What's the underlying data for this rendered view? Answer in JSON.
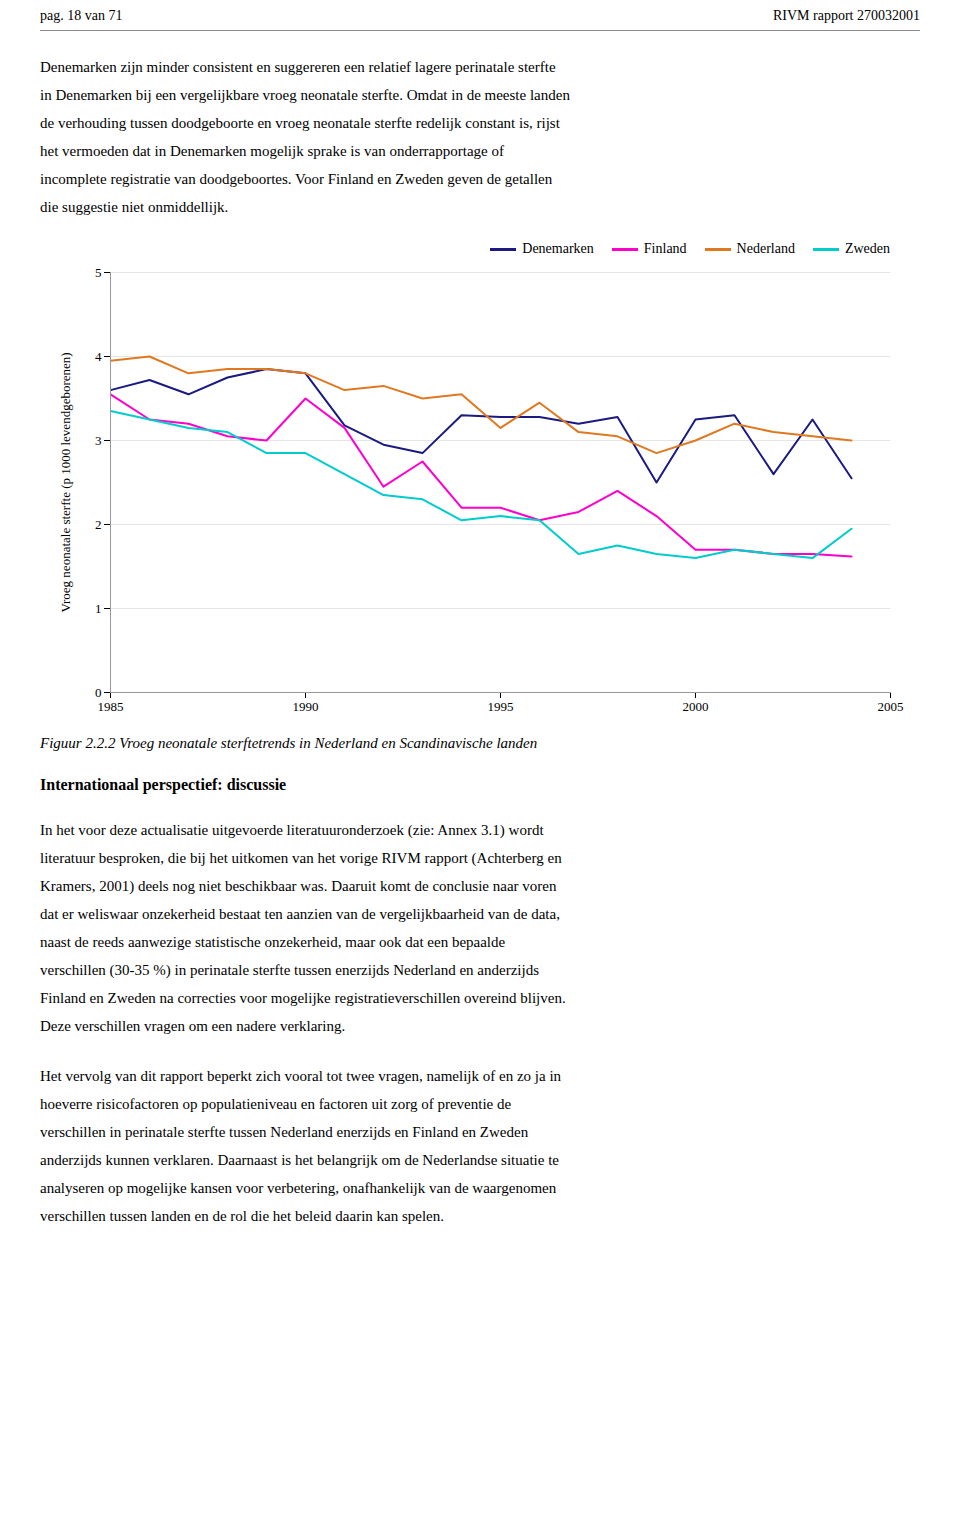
{
  "header_left": "pag. 18 van 71",
  "header_right": "RIVM rapport 270032001",
  "paragraphs_before": [
    [
      "Denemarken zijn minder consistent en suggereren een relatief lagere perinatale sterfte",
      "in Denemarken bij een vergelijkbare vroeg neonatale sterfte. Omdat in de meeste landen",
      "de verhouding tussen doodgeboorte en vroeg neonatale sterfte redelijk constant is, rijst",
      "het vermoeden dat in Denemarken mogelijk sprake is van onderrapportage of",
      "incomplete registratie van doodgeboortes. Voor Finland en Zweden geven de getallen",
      "die suggestie niet onmiddellijk."
    ]
  ],
  "chart_data": {
    "type": "line",
    "caption": "Figuur 2.2.2 Vroeg neonatale sterftetrends in Nederland en Scandinavische landen",
    "ylabel": "Vroeg neonatale sterfte (p 1000 levendgeborenen)",
    "x": [
      1985,
      1986,
      1987,
      1988,
      1989,
      1990,
      1991,
      1992,
      1993,
      1994,
      1995,
      1996,
      1997,
      1998,
      1999,
      2000,
      2001,
      2002,
      2003,
      2004
    ],
    "series": [
      {
        "name": "Denemarken",
        "color": "#1a1a80",
        "values": [
          3.6,
          3.72,
          3.55,
          3.75,
          3.85,
          3.8,
          3.18,
          2.95,
          2.85,
          3.3,
          3.28,
          3.28,
          3.2,
          3.28,
          2.5,
          3.25,
          3.3,
          2.6,
          3.25,
          2.55
        ]
      },
      {
        "name": "Finland",
        "color": "#ff00cc",
        "values": [
          3.55,
          3.25,
          3.2,
          3.05,
          3.0,
          3.5,
          3.15,
          2.45,
          2.75,
          2.2,
          2.2,
          2.05,
          2.15,
          2.4,
          2.1,
          1.7,
          1.7,
          1.65,
          1.65,
          1.62
        ]
      },
      {
        "name": "Nederland",
        "color": "#e07820",
        "values": [
          3.95,
          4.0,
          3.8,
          3.85,
          3.85,
          3.8,
          3.6,
          3.65,
          3.5,
          3.55,
          3.15,
          3.45,
          3.1,
          3.05,
          2.85,
          3.0,
          3.2,
          3.1,
          3.05,
          3.0
        ]
      },
      {
        "name": "Zweden",
        "color": "#00cccc",
        "values": [
          3.35,
          3.25,
          3.15,
          3.1,
          2.85,
          2.85,
          2.6,
          2.35,
          2.3,
          2.05,
          2.1,
          2.05,
          1.65,
          1.75,
          1.65,
          1.6,
          1.7,
          1.65,
          1.6,
          1.95
        ]
      }
    ],
    "xlim": [
      1985,
      2005
    ],
    "xticks": [
      1985,
      1990,
      1995,
      2000,
      2005
    ],
    "ylim": [
      0,
      5
    ],
    "yticks": [
      0,
      1,
      2,
      3,
      4,
      5
    ],
    "grid": "y",
    "legend": "upper right"
  },
  "section_title": "Internationaal perspectief: discussie",
  "paragraphs_after": [
    [
      "In het voor deze actualisatie uitgevoerde literatuuronderzoek (zie: Annex 3.1) wordt",
      "literatuur besproken, die bij het uitkomen van het vorige RIVM rapport (Achterberg en",
      "Kramers, 2001) deels nog niet beschikbaar was. Daaruit komt de conclusie naar voren",
      "dat er weliswaar onzekerheid bestaat ten aanzien van de vergelijkbaarheid van de data,",
      "naast de reeds aanwezige statistische onzekerheid, maar ook dat een bepaalde",
      "verschillen (30-35 %) in perinatale sterfte tussen enerzijds Nederland en anderzijds",
      "Finland en Zweden na correcties voor mogelijke registratieverschillen overeind blijven.",
      "Deze verschillen vragen om een nadere verklaring."
    ],
    [
      "Het vervolg van dit rapport beperkt zich vooral tot twee vragen, namelijk of en zo ja in",
      "hoeverre risicofactoren op populatieniveau en factoren uit zorg of preventie de",
      "verschillen in perinatale sterfte tussen Nederland enerzijds en Finland en Zweden",
      "anderzijds kunnen verklaren. Daarnaast is het belangrijk om de Nederlandse situatie te",
      "analyseren op mogelijke kansen voor verbetering, onafhankelijk van de waargenomen",
      "verschillen tussen landen en de rol die het beleid daarin kan spelen."
    ]
  ]
}
